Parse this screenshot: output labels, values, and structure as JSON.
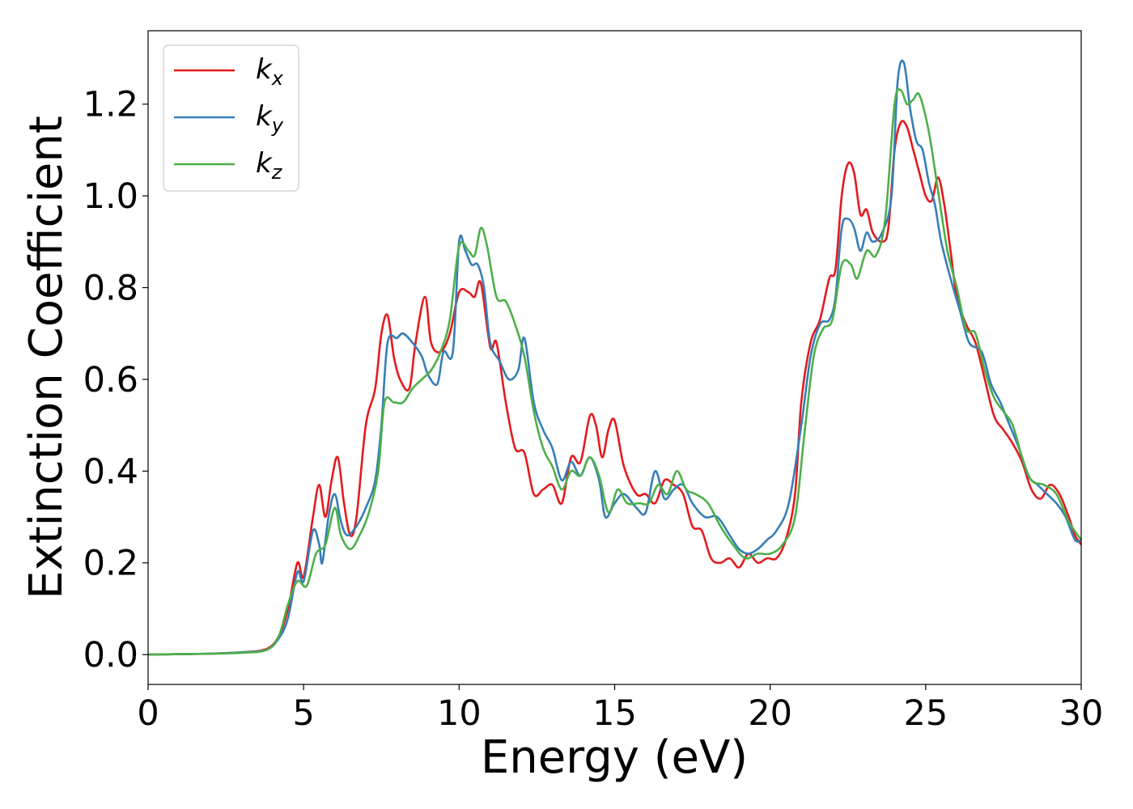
{
  "chart_data": {
    "type": "line",
    "xlabel": "Energy (eV)",
    "ylabel": "Extinction Coefficient",
    "xlim": [
      0,
      30
    ],
    "ylim": [
      -0.065,
      1.36
    ],
    "xticks": [
      0,
      5,
      10,
      15,
      20,
      25,
      30
    ],
    "yticks": [
      0.0,
      0.2,
      0.4,
      0.6,
      0.8,
      1.0,
      1.2
    ],
    "grid": false,
    "legend_position": "top-left",
    "series": [
      {
        "name": "k_x",
        "label_base": "k",
        "label_sub": "x",
        "color": "#e41a1c",
        "points": [
          [
            0,
            0.0
          ],
          [
            1,
            0.001
          ],
          [
            2,
            0.002
          ],
          [
            3,
            0.005
          ],
          [
            3.8,
            0.012
          ],
          [
            4.2,
            0.04
          ],
          [
            4.5,
            0.1
          ],
          [
            4.8,
            0.2
          ],
          [
            5.0,
            0.17
          ],
          [
            5.3,
            0.3
          ],
          [
            5.5,
            0.37
          ],
          [
            5.7,
            0.3
          ],
          [
            5.9,
            0.38
          ],
          [
            6.1,
            0.43
          ],
          [
            6.3,
            0.33
          ],
          [
            6.5,
            0.26
          ],
          [
            6.7,
            0.3
          ],
          [
            7.0,
            0.5
          ],
          [
            7.3,
            0.58
          ],
          [
            7.5,
            0.7
          ],
          [
            7.7,
            0.74
          ],
          [
            7.9,
            0.65
          ],
          [
            8.1,
            0.6
          ],
          [
            8.4,
            0.58
          ],
          [
            8.6,
            0.68
          ],
          [
            8.9,
            0.78
          ],
          [
            9.1,
            0.68
          ],
          [
            9.4,
            0.66
          ],
          [
            9.7,
            0.7
          ],
          [
            10.0,
            0.79
          ],
          [
            10.3,
            0.79
          ],
          [
            10.5,
            0.78
          ],
          [
            10.7,
            0.81
          ],
          [
            11.0,
            0.67
          ],
          [
            11.2,
            0.68
          ],
          [
            11.5,
            0.55
          ],
          [
            11.8,
            0.45
          ],
          [
            12.1,
            0.44
          ],
          [
            12.4,
            0.35
          ],
          [
            12.7,
            0.36
          ],
          [
            13.0,
            0.37
          ],
          [
            13.3,
            0.33
          ],
          [
            13.6,
            0.43
          ],
          [
            13.9,
            0.42
          ],
          [
            14.2,
            0.52
          ],
          [
            14.4,
            0.5
          ],
          [
            14.6,
            0.43
          ],
          [
            14.8,
            0.49
          ],
          [
            15.0,
            0.51
          ],
          [
            15.3,
            0.41
          ],
          [
            15.7,
            0.35
          ],
          [
            16.0,
            0.35
          ],
          [
            16.3,
            0.33
          ],
          [
            16.6,
            0.38
          ],
          [
            16.9,
            0.37
          ],
          [
            17.2,
            0.35
          ],
          [
            17.5,
            0.28
          ],
          [
            17.8,
            0.27
          ],
          [
            18.1,
            0.21
          ],
          [
            18.4,
            0.2
          ],
          [
            18.7,
            0.21
          ],
          [
            19.0,
            0.19
          ],
          [
            19.3,
            0.22
          ],
          [
            19.6,
            0.2
          ],
          [
            19.9,
            0.21
          ],
          [
            20.2,
            0.21
          ],
          [
            20.5,
            0.25
          ],
          [
            20.8,
            0.35
          ],
          [
            21.0,
            0.55
          ],
          [
            21.3,
            0.68
          ],
          [
            21.6,
            0.73
          ],
          [
            21.9,
            0.82
          ],
          [
            22.1,
            0.84
          ],
          [
            22.3,
            1.0
          ],
          [
            22.5,
            1.07
          ],
          [
            22.7,
            1.05
          ],
          [
            22.9,
            0.96
          ],
          [
            23.1,
            0.97
          ],
          [
            23.3,
            0.92
          ],
          [
            23.6,
            0.9
          ],
          [
            23.8,
            0.93
          ],
          [
            24.0,
            1.1
          ],
          [
            24.2,
            1.16
          ],
          [
            24.4,
            1.15
          ],
          [
            24.6,
            1.1
          ],
          [
            24.8,
            1.05
          ],
          [
            25.0,
            1.0
          ],
          [
            25.2,
            0.99
          ],
          [
            25.4,
            1.04
          ],
          [
            25.6,
            0.98
          ],
          [
            25.8,
            0.88
          ],
          [
            26.0,
            0.78
          ],
          [
            26.3,
            0.72
          ],
          [
            26.6,
            0.68
          ],
          [
            26.9,
            0.6
          ],
          [
            27.2,
            0.52
          ],
          [
            27.5,
            0.49
          ],
          [
            27.8,
            0.46
          ],
          [
            28.1,
            0.42
          ],
          [
            28.4,
            0.36
          ],
          [
            28.7,
            0.34
          ],
          [
            29.0,
            0.37
          ],
          [
            29.3,
            0.35
          ],
          [
            29.6,
            0.3
          ],
          [
            29.8,
            0.26
          ],
          [
            30.0,
            0.24
          ]
        ]
      },
      {
        "name": "k_y",
        "label_base": "k",
        "label_sub": "y",
        "color": "#377eb8",
        "points": [
          [
            0,
            0.0
          ],
          [
            1,
            0.001
          ],
          [
            2,
            0.002
          ],
          [
            3,
            0.005
          ],
          [
            3.8,
            0.01
          ],
          [
            4.2,
            0.035
          ],
          [
            4.5,
            0.08
          ],
          [
            4.8,
            0.18
          ],
          [
            5.0,
            0.16
          ],
          [
            5.3,
            0.27
          ],
          [
            5.5,
            0.24
          ],
          [
            5.6,
            0.2
          ],
          [
            5.8,
            0.3
          ],
          [
            6.0,
            0.35
          ],
          [
            6.2,
            0.29
          ],
          [
            6.4,
            0.26
          ],
          [
            6.7,
            0.28
          ],
          [
            7.0,
            0.32
          ],
          [
            7.3,
            0.38
          ],
          [
            7.5,
            0.5
          ],
          [
            7.7,
            0.68
          ],
          [
            8.0,
            0.69
          ],
          [
            8.2,
            0.7
          ],
          [
            8.5,
            0.68
          ],
          [
            8.8,
            0.65
          ],
          [
            9.0,
            0.61
          ],
          [
            9.3,
            0.59
          ],
          [
            9.5,
            0.66
          ],
          [
            9.8,
            0.66
          ],
          [
            10.0,
            0.9
          ],
          [
            10.2,
            0.88
          ],
          [
            10.4,
            0.85
          ],
          [
            10.6,
            0.85
          ],
          [
            10.8,
            0.8
          ],
          [
            11.0,
            0.68
          ],
          [
            11.3,
            0.64
          ],
          [
            11.6,
            0.6
          ],
          [
            11.9,
            0.62
          ],
          [
            12.1,
            0.69
          ],
          [
            12.4,
            0.55
          ],
          [
            12.7,
            0.49
          ],
          [
            13.0,
            0.45
          ],
          [
            13.3,
            0.38
          ],
          [
            13.6,
            0.42
          ],
          [
            13.9,
            0.39
          ],
          [
            14.2,
            0.43
          ],
          [
            14.5,
            0.38
          ],
          [
            14.7,
            0.3
          ],
          [
            15.0,
            0.33
          ],
          [
            15.3,
            0.35
          ],
          [
            15.7,
            0.32
          ],
          [
            16.0,
            0.31
          ],
          [
            16.3,
            0.4
          ],
          [
            16.6,
            0.34
          ],
          [
            16.9,
            0.36
          ],
          [
            17.2,
            0.37
          ],
          [
            17.5,
            0.33
          ],
          [
            17.9,
            0.3
          ],
          [
            18.3,
            0.3
          ],
          [
            18.7,
            0.26
          ],
          [
            19.0,
            0.23
          ],
          [
            19.3,
            0.22
          ],
          [
            19.6,
            0.23
          ],
          [
            19.9,
            0.25
          ],
          [
            20.2,
            0.27
          ],
          [
            20.6,
            0.33
          ],
          [
            21.0,
            0.5
          ],
          [
            21.3,
            0.65
          ],
          [
            21.6,
            0.72
          ],
          [
            21.9,
            0.73
          ],
          [
            22.1,
            0.78
          ],
          [
            22.3,
            0.93
          ],
          [
            22.5,
            0.95
          ],
          [
            22.7,
            0.93
          ],
          [
            22.9,
            0.88
          ],
          [
            23.1,
            0.92
          ],
          [
            23.3,
            0.9
          ],
          [
            23.6,
            0.92
          ],
          [
            23.9,
            1.0
          ],
          [
            24.1,
            1.25
          ],
          [
            24.3,
            1.29
          ],
          [
            24.5,
            1.19
          ],
          [
            24.7,
            1.12
          ],
          [
            24.9,
            1.1
          ],
          [
            25.1,
            1.03
          ],
          [
            25.3,
            0.98
          ],
          [
            25.5,
            0.9
          ],
          [
            25.8,
            0.82
          ],
          [
            26.1,
            0.75
          ],
          [
            26.4,
            0.68
          ],
          [
            26.8,
            0.66
          ],
          [
            27.1,
            0.59
          ],
          [
            27.4,
            0.55
          ],
          [
            27.7,
            0.5
          ],
          [
            28.0,
            0.45
          ],
          [
            28.3,
            0.39
          ],
          [
            28.6,
            0.37
          ],
          [
            28.9,
            0.35
          ],
          [
            29.2,
            0.33
          ],
          [
            29.5,
            0.3
          ],
          [
            29.8,
            0.25
          ],
          [
            30.0,
            0.25
          ]
        ]
      },
      {
        "name": "k_z",
        "label_base": "k",
        "label_sub": "z",
        "color": "#4daf4a",
        "points": [
          [
            0,
            0.0
          ],
          [
            1,
            0.001
          ],
          [
            2,
            0.002
          ],
          [
            3,
            0.004
          ],
          [
            3.8,
            0.01
          ],
          [
            4.2,
            0.04
          ],
          [
            4.5,
            0.11
          ],
          [
            4.8,
            0.16
          ],
          [
            5.1,
            0.15
          ],
          [
            5.4,
            0.22
          ],
          [
            5.7,
            0.24
          ],
          [
            6.0,
            0.32
          ],
          [
            6.2,
            0.26
          ],
          [
            6.5,
            0.23
          ],
          [
            6.8,
            0.26
          ],
          [
            7.1,
            0.31
          ],
          [
            7.4,
            0.4
          ],
          [
            7.6,
            0.55
          ],
          [
            7.9,
            0.55
          ],
          [
            8.2,
            0.55
          ],
          [
            8.5,
            0.58
          ],
          [
            8.8,
            0.6
          ],
          [
            9.1,
            0.62
          ],
          [
            9.4,
            0.66
          ],
          [
            9.7,
            0.73
          ],
          [
            10.0,
            0.89
          ],
          [
            10.3,
            0.88
          ],
          [
            10.5,
            0.87
          ],
          [
            10.7,
            0.93
          ],
          [
            10.9,
            0.89
          ],
          [
            11.2,
            0.78
          ],
          [
            11.5,
            0.77
          ],
          [
            11.8,
            0.72
          ],
          [
            12.1,
            0.65
          ],
          [
            12.4,
            0.53
          ],
          [
            12.7,
            0.45
          ],
          [
            13.0,
            0.41
          ],
          [
            13.3,
            0.36
          ],
          [
            13.6,
            0.4
          ],
          [
            13.9,
            0.39
          ],
          [
            14.2,
            0.43
          ],
          [
            14.5,
            0.39
          ],
          [
            14.8,
            0.31
          ],
          [
            15.1,
            0.36
          ],
          [
            15.4,
            0.33
          ],
          [
            15.8,
            0.33
          ],
          [
            16.1,
            0.33
          ],
          [
            16.4,
            0.37
          ],
          [
            16.7,
            0.35
          ],
          [
            17.0,
            0.4
          ],
          [
            17.3,
            0.36
          ],
          [
            17.6,
            0.35
          ],
          [
            18.0,
            0.33
          ],
          [
            18.4,
            0.28
          ],
          [
            18.8,
            0.24
          ],
          [
            19.2,
            0.21
          ],
          [
            19.6,
            0.22
          ],
          [
            20.0,
            0.22
          ],
          [
            20.4,
            0.24
          ],
          [
            20.8,
            0.3
          ],
          [
            21.1,
            0.48
          ],
          [
            21.4,
            0.65
          ],
          [
            21.7,
            0.71
          ],
          [
            22.0,
            0.73
          ],
          [
            22.3,
            0.85
          ],
          [
            22.6,
            0.85
          ],
          [
            22.8,
            0.82
          ],
          [
            23.1,
            0.88
          ],
          [
            23.4,
            0.87
          ],
          [
            23.7,
            0.95
          ],
          [
            24.0,
            1.2
          ],
          [
            24.2,
            1.23
          ],
          [
            24.4,
            1.2
          ],
          [
            24.6,
            1.21
          ],
          [
            24.8,
            1.22
          ],
          [
            25.1,
            1.14
          ],
          [
            25.4,
            1.01
          ],
          [
            25.7,
            0.88
          ],
          [
            26.0,
            0.8
          ],
          [
            26.3,
            0.71
          ],
          [
            26.6,
            0.7
          ],
          [
            26.9,
            0.62
          ],
          [
            27.2,
            0.56
          ],
          [
            27.5,
            0.53
          ],
          [
            27.8,
            0.5
          ],
          [
            28.1,
            0.43
          ],
          [
            28.4,
            0.38
          ],
          [
            28.8,
            0.37
          ],
          [
            29.2,
            0.35
          ],
          [
            29.6,
            0.29
          ],
          [
            30.0,
            0.25
          ]
        ]
      }
    ]
  }
}
